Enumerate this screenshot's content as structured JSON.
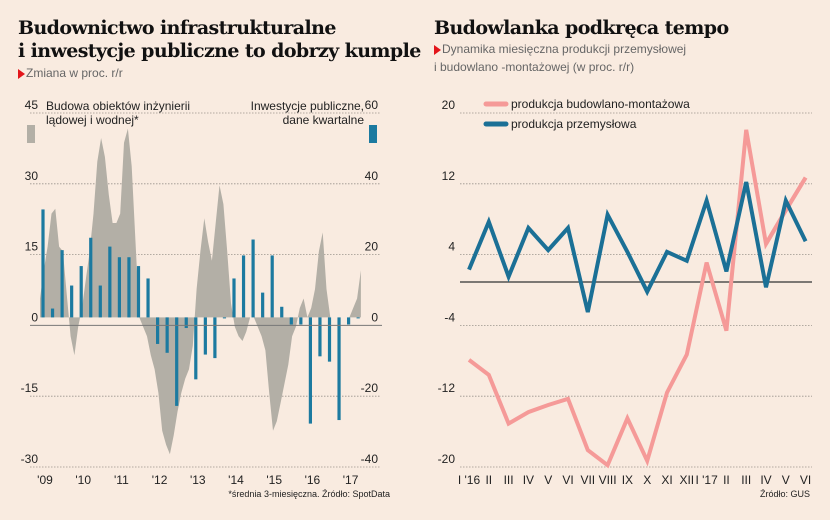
{
  "left": {
    "title_line1": "Budownictwo infrastrukturalne",
    "title_line2": "i inwestycje publiczne to dobrzy kumple",
    "subtitle": "Zmiana w proc. r/r",
    "footnote": "*średnia 3-miesięczna. Źródło: SpotData"
  },
  "right": {
    "title": "Budowlanka podkręca tempo",
    "subtitle_line1": "Dynamika miesięczna produkcji przemysłowej",
    "subtitle_line2": "i budowlano -montażowej (w proc. r/r)",
    "source": "Źródło: GUS"
  },
  "colors": {
    "background": "#f9ebe0",
    "area_grey": "#b3afa6",
    "bar_blue": "#1c7aa0",
    "line_blue": "#1b7096",
    "line_pink": "#f59a98",
    "accent_red": "#e3151a"
  },
  "chart_data": [
    {
      "type": "area",
      "title": "Budownictwo infrastrukturalne i inwestycje publiczne to dobrzy kumple",
      "subtitle": "Zmiana w proc. r/r",
      "x_ticks": [
        "'09",
        "'10",
        "'11",
        "'12",
        "'13",
        "'14",
        "'15",
        "'16",
        "'17"
      ],
      "y_left": {
        "ticks": [
          45,
          30,
          15,
          0,
          -15,
          -30
        ],
        "range": [
          -30,
          45
        ]
      },
      "y_right": {
        "ticks": [
          60,
          40,
          20,
          0,
          -20,
          -40
        ],
        "range": [
          -40,
          60
        ]
      },
      "legend_left": [
        "Budowa obiektów inżynierii",
        "lądowej i wodnej*"
      ],
      "legend_right": [
        "Inwestycje publiczne,",
        "dane kwartalne"
      ],
      "grid": true,
      "series": [
        {
          "name": "Budowa obiektów inżynierii lądowej i wodnej*",
          "axis": "left",
          "kind": "area",
          "x_year": [
            2009.0,
            2009.1,
            2009.2,
            2009.3,
            2009.4,
            2009.5,
            2009.6,
            2009.7,
            2009.8,
            2009.9,
            2010.0,
            2010.1,
            2010.2,
            2010.3,
            2010.4,
            2010.5,
            2010.6,
            2010.7,
            2010.8,
            2010.9,
            2011.0,
            2011.1,
            2011.2,
            2011.3,
            2011.4,
            2011.5,
            2011.6,
            2011.7,
            2011.8,
            2011.9,
            2012.0,
            2012.1,
            2012.2,
            2012.3,
            2012.4,
            2012.5,
            2012.6,
            2012.7,
            2012.8,
            2012.9,
            2013.0,
            2013.1,
            2013.2,
            2013.3,
            2013.4,
            2013.5,
            2013.6,
            2013.7,
            2013.8,
            2013.9,
            2014.0,
            2014.1,
            2014.2,
            2014.3,
            2014.4,
            2014.5,
            2014.6,
            2014.7,
            2014.8,
            2014.9,
            2015.0,
            2015.1,
            2015.2,
            2015.3,
            2015.4,
            2015.5,
            2015.6,
            2015.7,
            2015.8,
            2015.9,
            2016.0,
            2016.1,
            2016.2,
            2016.3,
            2016.4,
            2016.5,
            2016.6,
            2016.7,
            2016.8,
            2016.9,
            2017.0,
            2017.1,
            2017.2,
            2017.3,
            2017.4
          ],
          "values": [
            4,
            10,
            15,
            22,
            23,
            15,
            14,
            5,
            -4,
            -8,
            -2,
            2,
            8,
            14,
            22,
            33,
            38,
            34,
            26,
            20,
            20,
            22,
            37,
            40,
            32,
            16,
            0,
            -2,
            -4,
            -8,
            -11,
            -16,
            -24,
            -27,
            -29,
            -25,
            -20,
            -16,
            -13,
            -11,
            -6,
            6,
            14,
            21,
            16,
            12,
            20,
            28,
            24,
            14,
            3,
            -2,
            -4,
            -5,
            -3,
            0,
            0,
            -2,
            -4,
            -7,
            -16,
            -24,
            -22,
            -18,
            -14,
            -10,
            -4,
            -2,
            2,
            4,
            0,
            2,
            6,
            14,
            18,
            6,
            0,
            0,
            0,
            0,
            0,
            0,
            2,
            4,
            10
          ],
          "note": "approximate, read from area outline"
        },
        {
          "name": "Inwestycje publiczne, dane kwartalne",
          "axis": "right",
          "kind": "bar",
          "quarters": [
            "2009Q1",
            "2009Q2",
            "2009Q3",
            "2009Q4",
            "2010Q1",
            "2010Q2",
            "2010Q3",
            "2010Q4",
            "2011Q1",
            "2011Q2",
            "2011Q3",
            "2011Q4",
            "2012Q1",
            "2012Q2",
            "2012Q3",
            "2012Q4",
            "2013Q1",
            "2013Q2",
            "2013Q3",
            "2013Q4",
            "2014Q1",
            "2014Q2",
            "2014Q3",
            "2014Q4",
            "2015Q1",
            "2015Q2",
            "2015Q3",
            "2015Q4",
            "2016Q1",
            "2016Q2",
            "2016Q3",
            "2016Q4",
            "2017Q1",
            "2017Q2"
          ],
          "values": [
            30.5,
            2.5,
            19,
            9,
            14.5,
            22.5,
            9,
            20,
            17,
            17,
            14.5,
            11,
            -7.5,
            -10,
            -25,
            -3,
            -17.5,
            -10.5,
            -11.5,
            0,
            11,
            17.5,
            22,
            7,
            17.5,
            3,
            -2,
            -2,
            -30,
            -11,
            -12.5,
            -29,
            -2,
            0
          ]
        }
      ]
    },
    {
      "type": "line",
      "title": "Budowlanka podkręca tempo",
      "subtitle": "Dynamika miesięczna produkcji przemysłowej i budowlano -montażowej (w proc. r/r)",
      "categories": [
        "I '16",
        "II",
        "III",
        "IV",
        "V",
        "VI",
        "VII",
        "VIII",
        "IX",
        "X",
        "XI",
        "XII",
        "I '17",
        "II",
        "III",
        "IV",
        "V",
        "VI"
      ],
      "category_labels": [
        "I",
        "'16",
        "II",
        "III",
        "IV",
        "V",
        "VI",
        "VII",
        "VIII",
        "IX",
        "X",
        "XI",
        "XII",
        "I",
        "'17",
        "II",
        "III",
        "IV",
        "V",
        "VI"
      ],
      "y_ticks": [
        20,
        12,
        4,
        -4,
        -12,
        -20
      ],
      "ylim": [
        -20,
        20
      ],
      "grid": true,
      "legend_position": "top-left",
      "series": [
        {
          "name": "produkcja budowlano-montażowa",
          "color": "#f59a98",
          "values": [
            -8.8,
            -10.5,
            -16.0,
            -14.7,
            -13.9,
            -13.2,
            -19.0,
            -20.7,
            -15.4,
            -20.2,
            -12.5,
            -8.2,
            2.2,
            -5.5,
            17.2,
            4.3,
            8.1,
            11.8
          ]
        },
        {
          "name": "produkcja przemysłowa",
          "color": "#1b7096",
          "values": [
            1.4,
            6.8,
            0.6,
            6.1,
            3.6,
            6.1,
            -3.4,
            7.6,
            3.4,
            -1.1,
            3.4,
            2.4,
            9.2,
            1.2,
            11.3,
            -0.6,
            9.2,
            4.6
          ]
        }
      ]
    }
  ]
}
